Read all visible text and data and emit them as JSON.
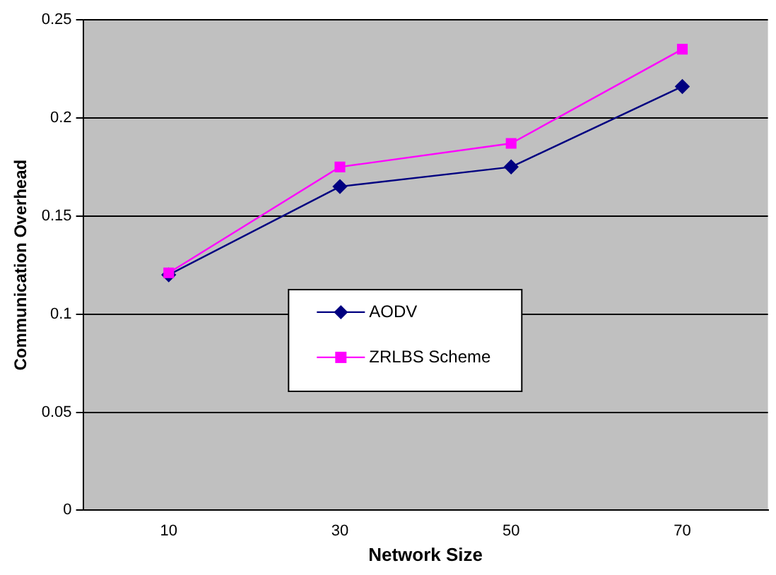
{
  "chart_data": {
    "type": "line",
    "xlabel": "Network Size",
    "ylabel": "Communication Overhead",
    "categories": [
      "10",
      "30",
      "50",
      "70"
    ],
    "series": [
      {
        "name": "AODV",
        "color": "#000080",
        "marker": "diamond",
        "values": [
          0.12,
          0.165,
          0.175,
          0.216
        ]
      },
      {
        "name": "ZRLBS Scheme",
        "color": "#ff00ff",
        "marker": "square",
        "values": [
          0.121,
          0.175,
          0.187,
          0.235
        ]
      }
    ],
    "ylim": [
      0,
      0.25
    ],
    "yticks": [
      0,
      0.05,
      0.1,
      0.15,
      0.2,
      0.25
    ],
    "grid": "y",
    "legend": "bottom",
    "line_style": "solid"
  }
}
